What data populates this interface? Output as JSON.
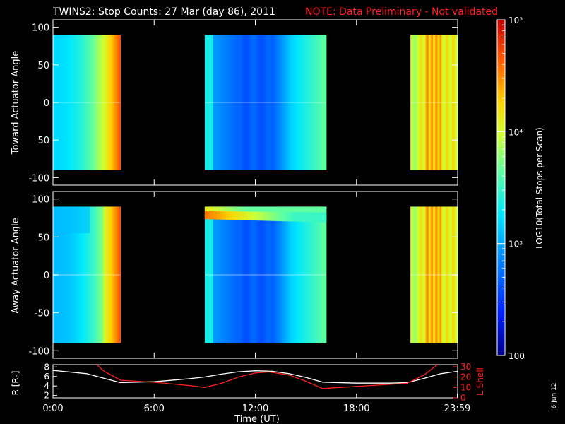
{
  "header": {
    "title": "TWINS2: Stop Counts: 27 Mar (day  86), 2011",
    "note": "NOTE: Data Preliminary - Not validated"
  },
  "side_date": "6 Jun 12",
  "colors": {
    "note_red": "#ff2020",
    "lshell_red": "#ff2020",
    "r_white": "#ffffff"
  },
  "chart_data": [
    {
      "type": "heatmap",
      "ylabel": "Toward Actuator Angle",
      "ylim": [
        -110,
        110
      ],
      "yticks": [
        "100",
        "50",
        "0",
        "-50",
        "-100"
      ],
      "xlim": [
        0,
        24
      ],
      "data_blocks": [
        {
          "t_start": 0.0,
          "t_end": 4.0
        },
        {
          "t_start": 9.0,
          "t_end": 16.2
        },
        {
          "t_start": 21.2,
          "t_end": 24.0
        }
      ],
      "angle_range": [
        -90,
        90
      ]
    },
    {
      "type": "heatmap",
      "ylabel": "Away Actuator Angle",
      "ylim": [
        -110,
        110
      ],
      "yticks": [
        "100",
        "50",
        "0",
        "-50",
        "-100"
      ],
      "xlim": [
        0,
        24
      ],
      "data_blocks": [
        {
          "t_start": 0.0,
          "t_end": 4.0
        },
        {
          "t_start": 9.0,
          "t_end": 16.2
        },
        {
          "t_start": 21.2,
          "t_end": 24.0
        }
      ],
      "angle_range": [
        -90,
        90
      ]
    },
    {
      "type": "line",
      "xlabel": "Time (UT)",
      "ylabel_left": "R [Rₑ]",
      "ylabel_right": "L Shell",
      "ylim_left": [
        1.5,
        8.5
      ],
      "ylim_right": [
        0,
        32
      ],
      "yticks_left": [
        "8",
        "6",
        "4",
        "2"
      ],
      "yticks_right": [
        "30",
        "20",
        "10",
        "0"
      ],
      "xticks": [
        "0:00",
        "6:00",
        "12:00",
        "18:00",
        "23:59"
      ],
      "xtick_hours": [
        0,
        6,
        12,
        18,
        23.98
      ],
      "series": [
        {
          "name": "R",
          "color": "#ffffff",
          "x": [
            0,
            2,
            4,
            6,
            8,
            9,
            10,
            11,
            12,
            13,
            14,
            15,
            16,
            18,
            20,
            21,
            22,
            23,
            24
          ],
          "y": [
            7.3,
            6.6,
            4.7,
            4.9,
            5.5,
            5.9,
            6.5,
            7.0,
            7.2,
            7.1,
            6.6,
            5.8,
            4.8,
            4.6,
            4.6,
            4.7,
            5.6,
            6.6,
            7.1
          ]
        },
        {
          "name": "L Shell",
          "color": "#ff2020",
          "x": [
            2.6,
            3.0,
            4.0,
            6.0,
            8.0,
            9.0,
            10.0,
            11.0,
            12.0,
            12.8,
            14.0,
            15.0,
            16.0,
            18.0,
            20.0,
            21.0,
            22.0,
            22.8
          ],
          "y": [
            32,
            26,
            17,
            15,
            12,
            10,
            14,
            20,
            24,
            25,
            22,
            16,
            9,
            11,
            13,
            14,
            22,
            32
          ]
        }
      ]
    }
  ],
  "colorbar": {
    "label": "LOG10(Total Stops per Scan)",
    "ticks": [
      {
        "value": 100000,
        "label": "10⁵"
      },
      {
        "value": 10000,
        "label": "10⁴"
      },
      {
        "value": 1000,
        "label": "10³"
      },
      {
        "value": 100,
        "label": "100"
      }
    ],
    "range": [
      100,
      100000
    ]
  }
}
